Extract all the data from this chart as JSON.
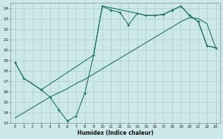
{
  "xlabel": "Humidex (Indice chaleur)",
  "background_color": "#cce8e8",
  "grid_color": "#aacaca",
  "line_color": "#1a6e64",
  "xlim": [
    -0.5,
    23.5
  ],
  "ylim": [
    13,
    24.5
  ],
  "yticks": [
    13,
    14,
    15,
    16,
    17,
    18,
    19,
    20,
    21,
    22,
    23,
    24
  ],
  "xticks": [
    0,
    1,
    2,
    3,
    4,
    5,
    6,
    7,
    8,
    9,
    10,
    11,
    12,
    13,
    14,
    15,
    16,
    17,
    18,
    19,
    20,
    21,
    22,
    23
  ],
  "s1_x": [
    0,
    1,
    3,
    4,
    5,
    6,
    7,
    8,
    9,
    10,
    11,
    12,
    13,
    14,
    15,
    16,
    17,
    18,
    19,
    20,
    21,
    22,
    23
  ],
  "s1_y": [
    18.8,
    17.3,
    16.2,
    15.5,
    14.3,
    13.2,
    13.7,
    15.9,
    19.5,
    24.2,
    23.8,
    23.6,
    22.4,
    23.5,
    23.3,
    23.3,
    23.4,
    23.8,
    24.2,
    23.3,
    22.7,
    20.4,
    20.2
  ],
  "s2_x": [
    0,
    1,
    2,
    3,
    4,
    5,
    6,
    7,
    8,
    9,
    10,
    11,
    12,
    13,
    14,
    15,
    16,
    17,
    18,
    19,
    20,
    21,
    22,
    23
  ],
  "s2_y": [
    13.5,
    14.0,
    14.5,
    15.0,
    15.5,
    15.9,
    16.3,
    16.8,
    17.2,
    17.7,
    18.2,
    18.7,
    19.2,
    19.7,
    20.2,
    20.7,
    21.2,
    21.7,
    22.2,
    22.7,
    23.1,
    23.0,
    22.5,
    20.2
  ],
  "s3_x": [
    0,
    1,
    3,
    9,
    10,
    14,
    15,
    16,
    17,
    18,
    19,
    20,
    21,
    22,
    23
  ],
  "s3_y": [
    18.8,
    17.3,
    16.2,
    19.5,
    24.2,
    23.5,
    23.3,
    23.3,
    23.4,
    23.8,
    24.2,
    23.3,
    22.7,
    20.4,
    20.2
  ]
}
